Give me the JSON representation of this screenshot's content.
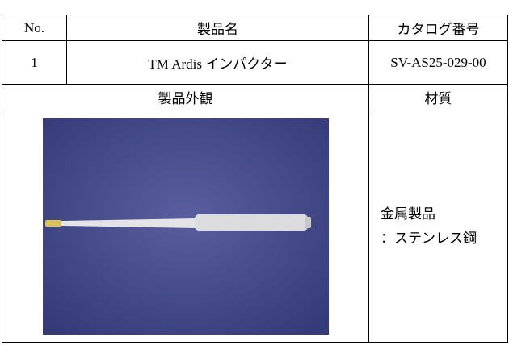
{
  "table": {
    "header": [
      "No.",
      "製品名",
      "カタログ番号"
    ],
    "rows": [
      [
        "1",
        "TM Ardis インパクター",
        "SV-AS25-029-00"
      ]
    ],
    "header2": [
      "製品外観",
      "材質"
    ],
    "material": [
      "金属製品",
      "：ステンレス鋼"
    ]
  }
}
